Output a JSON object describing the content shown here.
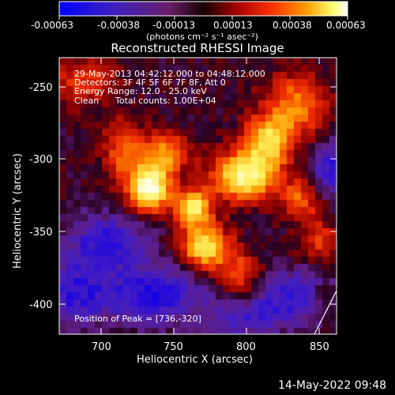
{
  "colorbar": {
    "ticks": [
      "-0.00063",
      "-0.00038",
      "-0.00013",
      "0.00013",
      "0.00038",
      "0.00063"
    ],
    "unit_label": "(photons cm⁻² s⁻¹ asec⁻²)",
    "colormap": [
      "#0000ff",
      "#3a1fb0",
      "#6a1f7a",
      "#1a0000",
      "#a00000",
      "#ff2a00",
      "#ff9a00",
      "#ffff80",
      "#ffffff"
    ]
  },
  "chart_data": {
    "type": "heatmap",
    "title": "Reconstructed RHESSI Image",
    "xlabel": "Heliocentric X (arcsec)",
    "ylabel": "Heliocentric Y (arcsec)",
    "xlim": [
      670,
      862
    ],
    "ylim": [
      -422,
      -230
    ],
    "x_ticks": [
      700,
      750,
      800,
      850
    ],
    "y_ticks": [
      -250,
      -300,
      -350,
      -400
    ],
    "annotations": {
      "time_range": "29-May-2013 04:42:12.000 to 04:48:12.000",
      "detectors": "Detectors: 3F 4F 5F 6F 7F 8F, Att 0",
      "energy": "Energy Range: 12.0 - 25.0 keV",
      "method": "Clean",
      "counts": "Total counts: 1.00E+04",
      "peak": "Position of Peak = [736,-320]"
    },
    "peak": [
      736,
      -320
    ]
  },
  "footer": {
    "timestamp": "14-May-2022 09:48"
  }
}
